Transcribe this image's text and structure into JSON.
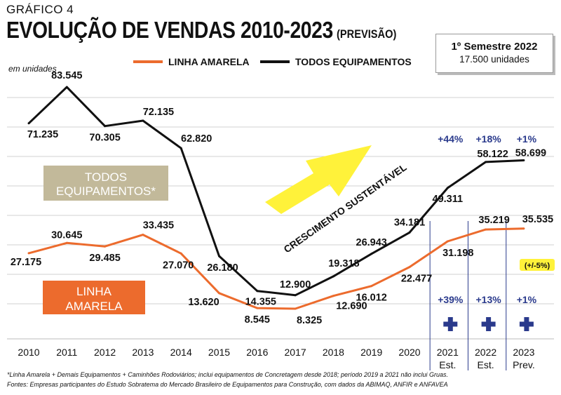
{
  "header": {
    "kicker": "GRÁFICO 4",
    "title": "EVOLUÇÃO DE VENDAS 2010-2023",
    "subtitle": "(PREVISÃO)",
    "unit": "em unidades"
  },
  "infobox": {
    "title": "1º Semestre 2022",
    "value": "17.500 unidades"
  },
  "colors": {
    "linha_amarela": "#ec6b2d",
    "todos": "#111111",
    "accent": "#2a3a8c",
    "arrow": "#fff23a",
    "todos_box": "#c2b99a",
    "linha_box": "#ec6b2d",
    "note_bg": "#fff23a"
  },
  "chart_data": {
    "type": "line",
    "categories": [
      "2010",
      "2011",
      "2012",
      "2013",
      "2014",
      "2015",
      "2016",
      "2017",
      "2018",
      "2019",
      "2020",
      "2021",
      "2022",
      "2023"
    ],
    "category_sublabels": [
      "",
      "",
      "",
      "",
      "",
      "",
      "",
      "",
      "",
      "",
      "",
      "Est.",
      "Est.",
      "Prev."
    ],
    "series": [
      {
        "name": "LINHA AMARELA",
        "values": [
          27175,
          30645,
          29485,
          33435,
          27070,
          13620,
          8545,
          8325,
          12690,
          16012,
          22477,
          31198,
          35219,
          35535
        ],
        "labels": [
          "27.175",
          "30.645",
          "29.485",
          "33.435",
          "27.070",
          "13.620",
          "8.545",
          "8.325",
          "12.690",
          "16.012",
          "22.477",
          "31.198",
          "35.219",
          "35.535"
        ]
      },
      {
        "name": "TODOS EQUIPAMENTOS",
        "values": [
          71235,
          83545,
          70305,
          72135,
          62820,
          26180,
          14355,
          12900,
          19318,
          26943,
          34181,
          49311,
          58122,
          58699
        ],
        "labels": [
          "71.235",
          "83.545",
          "70.305",
          "72.135",
          "62.820",
          "26.180",
          "14.355",
          "12.900",
          "19.318",
          "26.943",
          "34.181",
          "49.311",
          "58.122",
          "58.699"
        ]
      }
    ],
    "growth_todos": [
      "+44%",
      "+18%",
      "+1%"
    ],
    "growth_linha": [
      "+39%",
      "+13%",
      "+1%"
    ],
    "note_2023": "(+/-5%)",
    "box_todos": [
      "TODOS",
      "EQUIPAMENTOS*"
    ],
    "box_linha": [
      "LINHA",
      "AMARELA"
    ],
    "arrow_text": "CRESCIMENTO SUSTENTÁVEL",
    "ylim": [
      0,
      90000
    ],
    "grid": true,
    "legend_position": "top"
  },
  "footnotes": [
    "*Linha Amarela + Demais Equipamentos + Caminhões Rodoviários; inclui equipamentos de Concretagem desde 2018; período 2019 a 2021 não inclui Gruas.",
    "Fontes: Empresas participantes do Estudo Sobratema do Mercado Brasileiro de Equipamentos para Construção, com dados da ABIMAQ, ANFIR e ANFAVEA"
  ]
}
